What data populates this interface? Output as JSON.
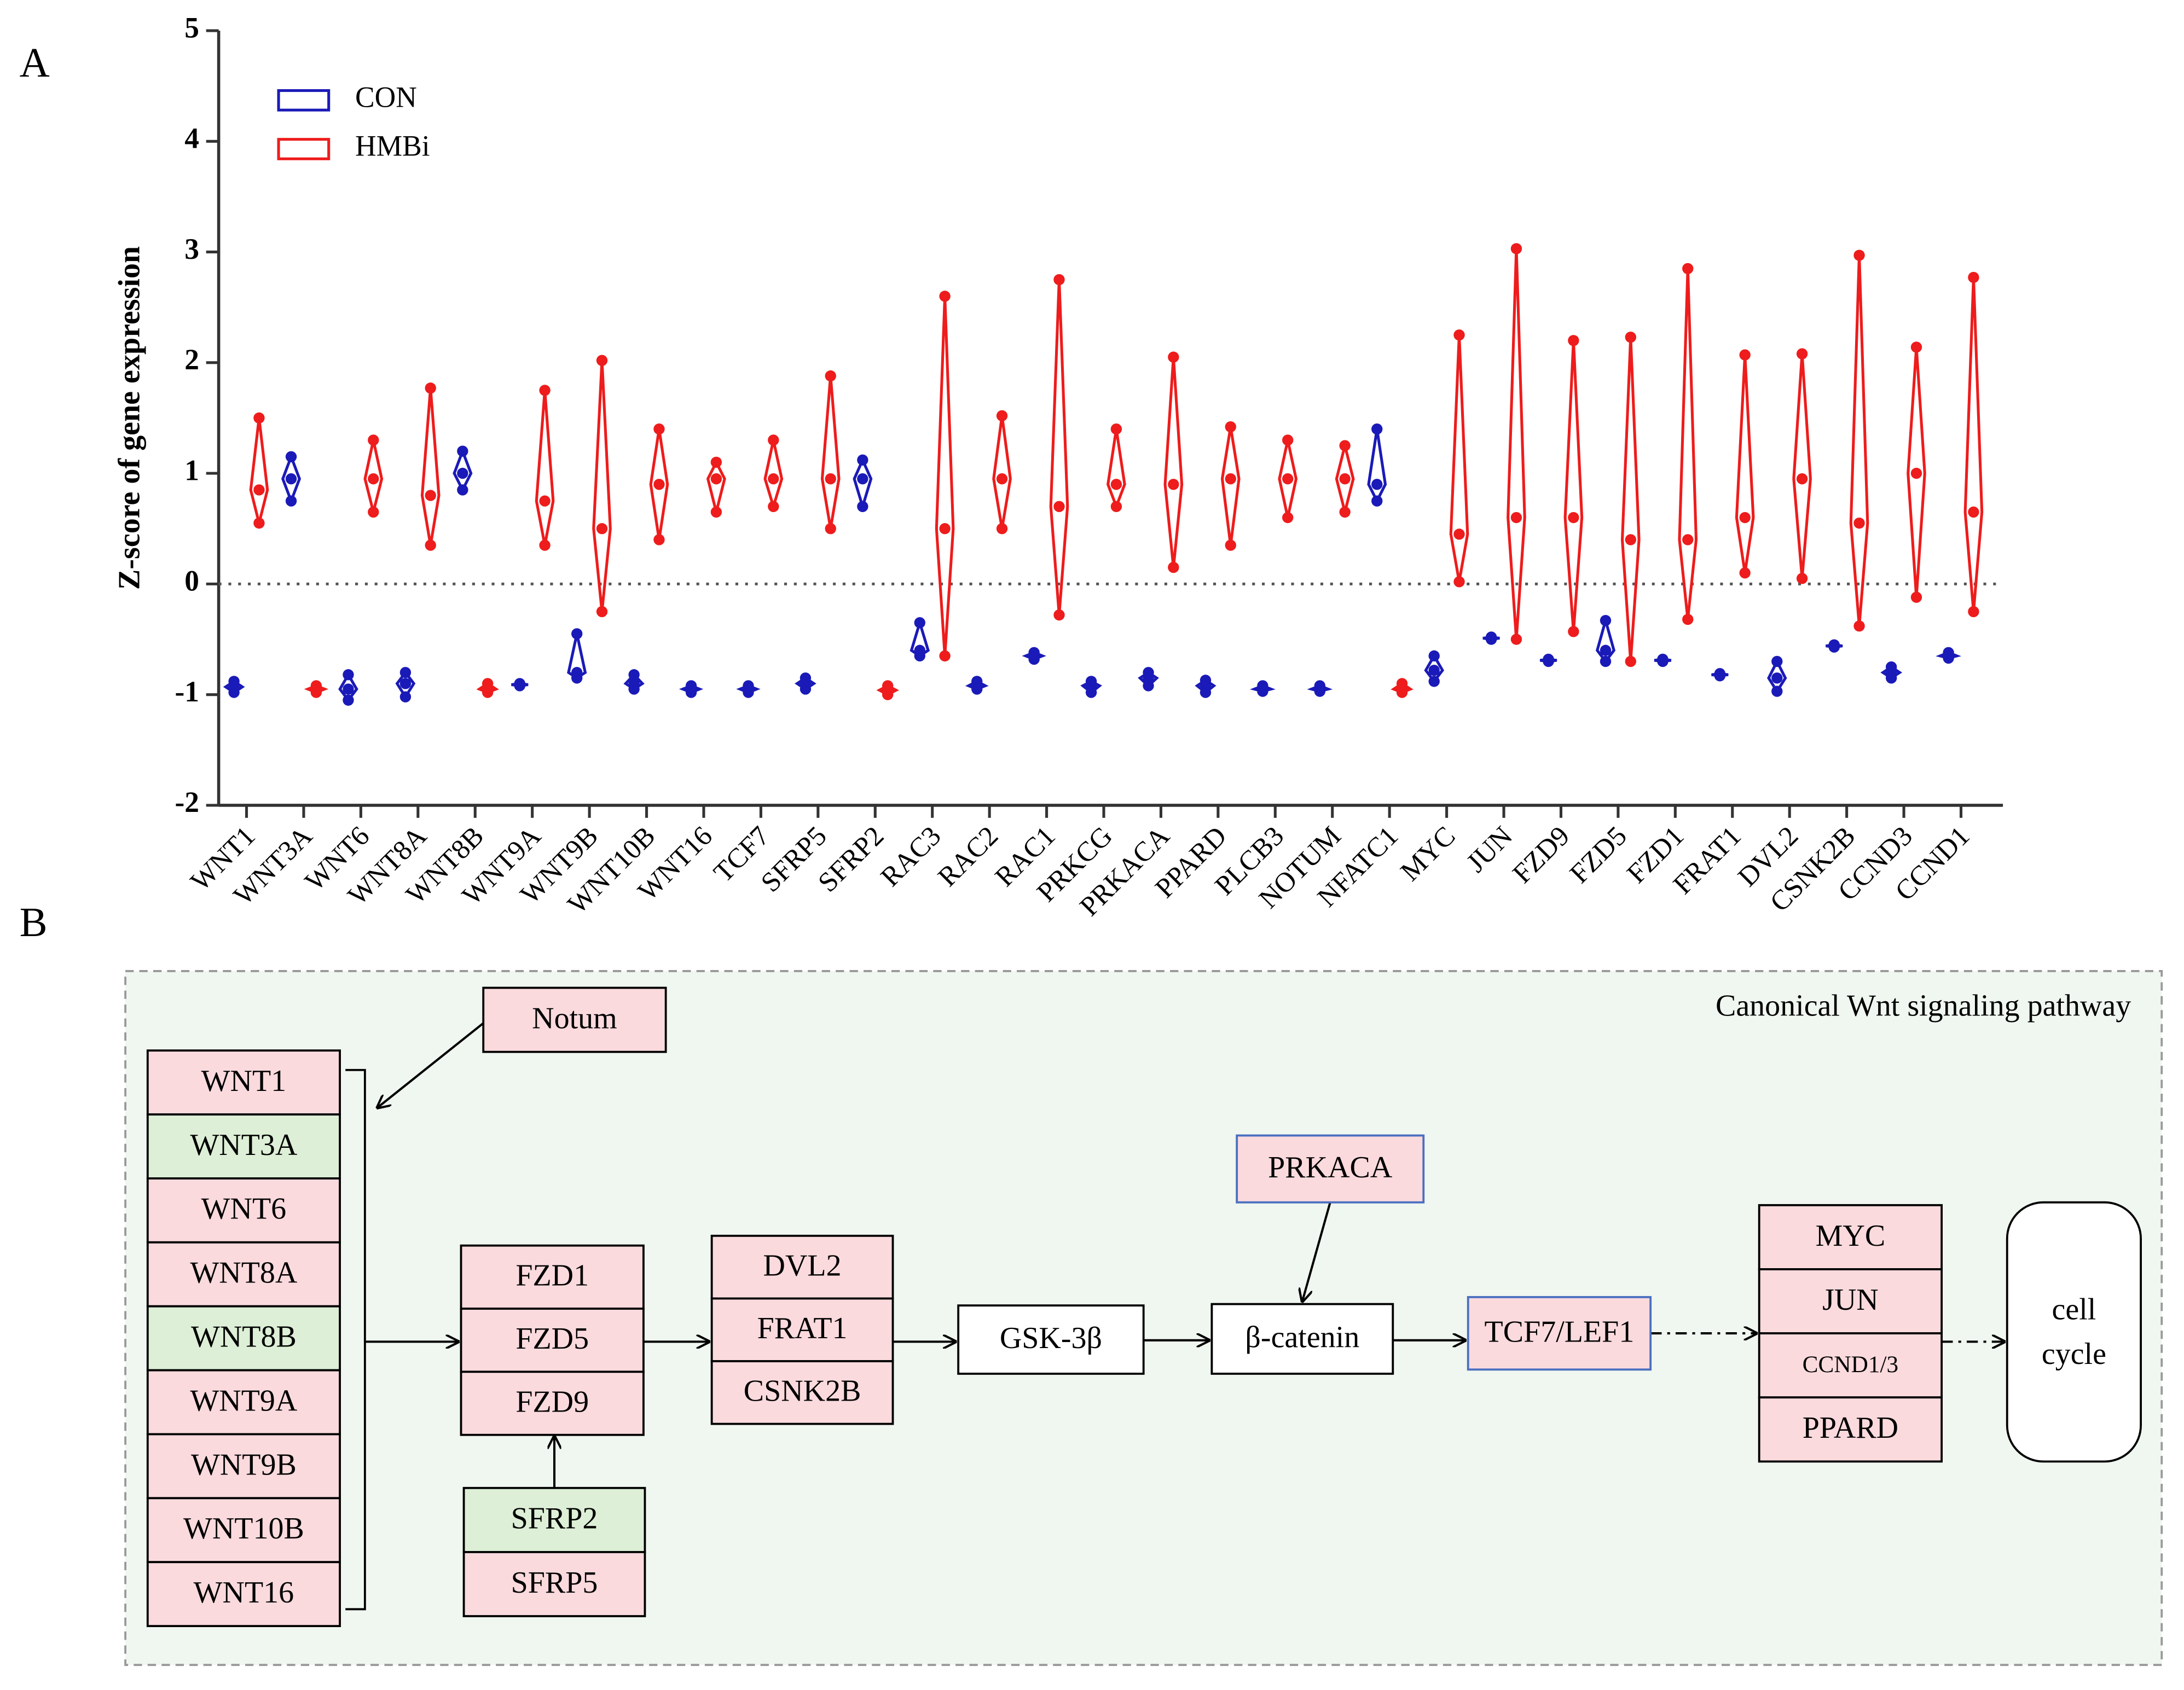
{
  "panel_labels": [
    "A",
    "B"
  ],
  "chart_data": {
    "type": "violin",
    "ylabel": "Z-score of gene expression",
    "categories": [
      "WNT1",
      "WNT3A",
      "WNT6",
      "WNT8A",
      "WNT8B",
      "WNT9A",
      "WNT9B",
      "WNT10B",
      "WNT16",
      "TCF7",
      "SFRP5",
      "SFRP2",
      "RAC3",
      "RAC2",
      "RAC1",
      "PRKCG",
      "PRKACA",
      "PPARD",
      "PLCB3",
      "NOTUM",
      "NFATC1",
      "MYC",
      "JUN",
      "FZD9",
      "FZD5",
      "FZD1",
      "FRAT1",
      "DVL2",
      "CSNK2B",
      "CCND3",
      "CCND1"
    ],
    "series": [
      {
        "name": "CON",
        "color": "#1a1ab8",
        "values": [
          [
            -0.98,
            -0.93,
            -0.88
          ],
          [
            0.75,
            0.95,
            1.15
          ],
          [
            -1.05,
            -0.95,
            -0.82
          ],
          [
            -1.02,
            -0.9,
            -0.8
          ],
          [
            0.85,
            1.0,
            1.2
          ],
          [
            -0.92,
            -0.91,
            -0.9
          ],
          [
            -0.85,
            -0.8,
            -0.45
          ],
          [
            -0.95,
            -0.9,
            -0.82
          ],
          [
            -0.98,
            -0.95,
            -0.92
          ],
          [
            -0.98,
            -0.95,
            -0.92
          ],
          [
            -0.95,
            -0.9,
            -0.85
          ],
          [
            0.7,
            0.95,
            1.12
          ],
          [
            -0.65,
            -0.6,
            -0.35
          ],
          [
            -0.95,
            -0.92,
            -0.88
          ],
          [
            -0.68,
            -0.65,
            -0.62
          ],
          [
            -0.98,
            -0.92,
            -0.88
          ],
          [
            -0.92,
            -0.85,
            -0.8
          ],
          [
            -0.98,
            -0.92,
            -0.87
          ],
          [
            -0.97,
            -0.95,
            -0.92
          ],
          [
            -0.97,
            -0.95,
            -0.92
          ],
          [
            0.75,
            0.9,
            1.4
          ],
          [
            -0.88,
            -0.78,
            -0.65
          ],
          [
            -0.5,
            -0.49,
            -0.48
          ],
          [
            -0.7,
            -0.69,
            -0.68
          ],
          [
            -0.7,
            -0.6,
            -0.33
          ],
          [
            -0.7,
            -0.69,
            -0.68
          ],
          [
            -0.83,
            -0.82,
            -0.81
          ],
          [
            -0.97,
            -0.85,
            -0.7
          ],
          [
            -0.57,
            -0.56,
            -0.55
          ],
          [
            -0.85,
            -0.8,
            -0.75
          ],
          [
            -0.67,
            -0.65,
            -0.62
          ]
        ]
      },
      {
        "name": "HMBi",
        "color": "#ee1c1c",
        "values": [
          [
            0.55,
            0.85,
            1.5
          ],
          [
            -0.98,
            -0.95,
            -0.92
          ],
          [
            0.65,
            0.95,
            1.3
          ],
          [
            0.35,
            0.8,
            1.77
          ],
          [
            -0.98,
            -0.95,
            -0.9
          ],
          [
            0.35,
            0.75,
            1.75
          ],
          [
            -0.25,
            0.5,
            2.02
          ],
          [
            0.4,
            0.9,
            1.4
          ],
          [
            0.65,
            0.95,
            1.1
          ],
          [
            0.7,
            0.95,
            1.3
          ],
          [
            0.5,
            0.95,
            1.88
          ],
          [
            -1.0,
            -0.96,
            -0.92
          ],
          [
            -0.65,
            0.5,
            2.6
          ],
          [
            0.5,
            0.95,
            1.52
          ],
          [
            -0.28,
            0.7,
            2.75
          ],
          [
            0.7,
            0.9,
            1.4
          ],
          [
            0.15,
            0.9,
            2.05
          ],
          [
            0.35,
            0.95,
            1.42
          ],
          [
            0.6,
            0.95,
            1.3
          ],
          [
            0.65,
            0.95,
            1.25
          ],
          [
            -0.98,
            -0.95,
            -0.9
          ],
          [
            0.02,
            0.45,
            2.25
          ],
          [
            -0.5,
            0.6,
            3.03
          ],
          [
            -0.43,
            0.6,
            2.2
          ],
          [
            -0.7,
            0.4,
            2.23
          ],
          [
            -0.32,
            0.4,
            2.85
          ],
          [
            0.1,
            0.6,
            2.07
          ],
          [
            0.05,
            0.95,
            2.08
          ],
          [
            -0.38,
            0.55,
            2.97
          ],
          [
            -0.12,
            1.0,
            2.14
          ],
          [
            -0.25,
            0.65,
            2.77
          ]
        ]
      }
    ],
    "ylim": [
      -2,
      5
    ],
    "yticks": [
      -2,
      -1,
      0,
      1,
      2,
      3,
      4,
      5
    ],
    "hline": 0,
    "legend": "upper left"
  },
  "diagram": {
    "title": "Canonical Wnt signaling pathway",
    "groups": [
      {
        "items": [
          {
            "label": "WNT1",
            "fill": "#fadadd"
          },
          {
            "label": "WNT3A",
            "fill": "#ddefd6"
          },
          {
            "label": "WNT6",
            "fill": "#fadadd"
          },
          {
            "label": "WNT8A",
            "fill": "#fadadd"
          },
          {
            "label": "WNT8B",
            "fill": "#ddefd6"
          },
          {
            "label": "WNT9A",
            "fill": "#fadadd"
          },
          {
            "label": "WNT9B",
            "fill": "#fadadd"
          },
          {
            "label": "WNT10B",
            "fill": "#fadadd"
          },
          {
            "label": "WNT16",
            "fill": "#fadadd"
          }
        ]
      },
      {
        "items": [
          {
            "label": "Notum",
            "fill": "#fadadd"
          }
        ]
      },
      {
        "items": [
          {
            "label": "FZD1",
            "fill": "#fadadd"
          },
          {
            "label": "FZD5",
            "fill": "#fadadd"
          },
          {
            "label": "FZD9",
            "fill": "#fadadd"
          }
        ]
      },
      {
        "items": [
          {
            "label": "SFRP2",
            "fill": "#ddefd6"
          },
          {
            "label": "SFRP5",
            "fill": "#fadadd"
          }
        ]
      },
      {
        "items": [
          {
            "label": "DVL2",
            "fill": "#fadadd"
          },
          {
            "label": "FRAT1",
            "fill": "#fadadd"
          },
          {
            "label": "CSNK2B",
            "fill": "#fadadd"
          }
        ]
      },
      {
        "items": [
          {
            "label": "GSK-3β",
            "fill": "#ffffff"
          }
        ]
      },
      {
        "items": [
          {
            "label": "β-catenin",
            "fill": "#ffffff"
          }
        ]
      },
      {
        "items": [
          {
            "label": "PRKACA",
            "fill": "#fadadd",
            "border": "#4a6fc0"
          }
        ]
      },
      {
        "items": [
          {
            "label": "TCF7/LEF1",
            "fill": "#fadadd",
            "border": "#4a6fc0"
          }
        ]
      },
      {
        "items": [
          {
            "label": "MYC",
            "fill": "#fadadd"
          },
          {
            "label": "JUN",
            "fill": "#fadadd"
          },
          {
            "label": "CCND1/3",
            "fill": "#fadadd"
          },
          {
            "label": "PPARD",
            "fill": "#fadadd"
          }
        ]
      }
    ],
    "cell_cycle": [
      "cell",
      "cycle"
    ]
  }
}
